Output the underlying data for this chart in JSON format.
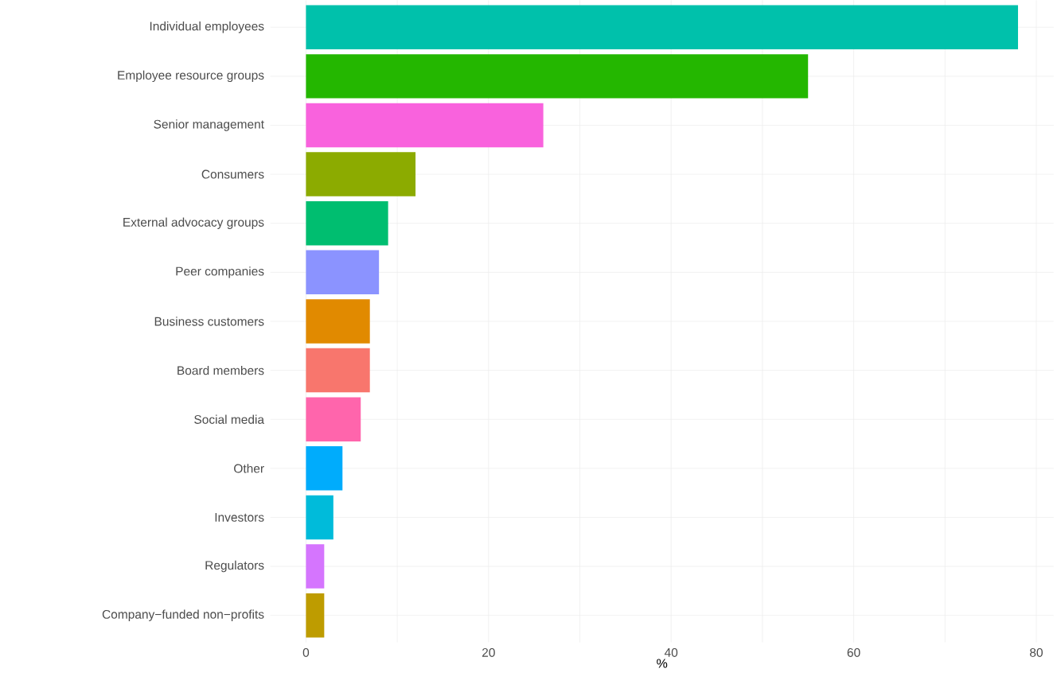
{
  "chart_data": {
    "type": "bar",
    "orientation": "horizontal",
    "xlabel": "%",
    "categories": [
      "Individual employees",
      "Employee resource groups",
      "Senior management",
      "Consumers",
      "External advocacy groups",
      "Peer companies",
      "Business customers",
      "Board members",
      "Social media",
      "Other",
      "Investors",
      "Regulators",
      "Company−funded non−profits"
    ],
    "values": [
      78,
      55,
      26,
      12,
      9,
      8,
      7,
      7,
      6,
      4,
      3,
      2,
      2
    ],
    "colors": [
      "#00c1ab",
      "#24b700",
      "#f962dd",
      "#8cab00",
      "#00be70",
      "#8b93ff",
      "#e18a00",
      "#f8766d",
      "#ff65ac",
      "#00acfc",
      "#00bbda",
      "#d575fe",
      "#be9c00"
    ],
    "xlim": [
      -3.9,
      81.9
    ],
    "xticks": [
      0,
      {
        "value": 10,
        "label": null
      },
      20,
      {
        "value": 30,
        "label": null
      },
      40,
      {
        "value": 50,
        "label": null
      },
      60,
      {
        "value": 70,
        "label": null
      },
      80
    ],
    "grid": true
  }
}
